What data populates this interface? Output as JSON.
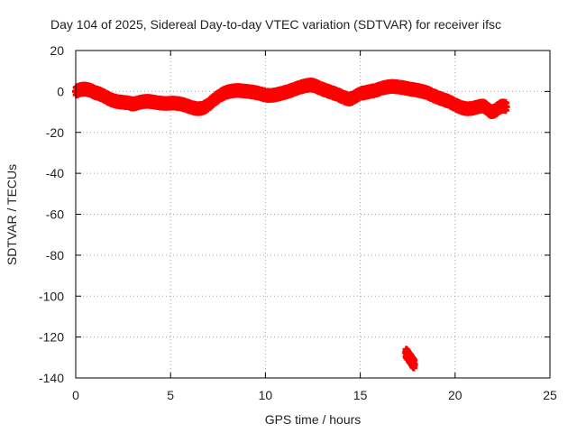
{
  "chart_data": {
    "type": "scatter",
    "title": "Day 104 of 2025, Sidereal Day-to-day VTEC variation (SDTVAR) for receiver ifsc",
    "xlabel": "GPS time / hours",
    "ylabel": "SDTVAR / TECUs",
    "xlim": [
      0,
      25
    ],
    "ylim": [
      -140,
      20
    ],
    "xticks": [
      0,
      5,
      10,
      15,
      20,
      25
    ],
    "yticks": [
      -140,
      -120,
      -100,
      -80,
      -60,
      -40,
      -20,
      0,
      20
    ],
    "grid": true,
    "marker": "+",
    "series": [
      {
        "name": "SDTVAR",
        "color": "#ff0000",
        "points": [
          [
            0.0,
            0.0
          ],
          [
            0.2,
            0.8
          ],
          [
            0.4,
            1.2
          ],
          [
            0.6,
            1.0
          ],
          [
            0.8,
            0.5
          ],
          [
            1.0,
            -0.5
          ],
          [
            1.2,
            -1.0
          ],
          [
            1.4,
            -1.8
          ],
          [
            1.6,
            -2.8
          ],
          [
            1.8,
            -3.8
          ],
          [
            2.0,
            -4.5
          ],
          [
            2.2,
            -5.0
          ],
          [
            2.5,
            -5.3
          ],
          [
            2.8,
            -5.6
          ],
          [
            3.0,
            -6.2
          ],
          [
            3.2,
            -5.8
          ],
          [
            3.5,
            -5.0
          ],
          [
            3.8,
            -4.8
          ],
          [
            4.0,
            -5.0
          ],
          [
            4.3,
            -5.5
          ],
          [
            4.6,
            -5.8
          ],
          [
            4.9,
            -5.8
          ],
          [
            5.2,
            -5.7
          ],
          [
            5.5,
            -6.0
          ],
          [
            5.8,
            -6.8
          ],
          [
            6.1,
            -7.8
          ],
          [
            6.4,
            -8.5
          ],
          [
            6.7,
            -8.2
          ],
          [
            7.0,
            -6.5
          ],
          [
            7.3,
            -4.0
          ],
          [
            7.6,
            -2.0
          ],
          [
            7.9,
            -0.5
          ],
          [
            8.2,
            0.2
          ],
          [
            8.5,
            0.5
          ],
          [
            8.8,
            0.3
          ],
          [
            9.1,
            0.0
          ],
          [
            9.4,
            -0.4
          ],
          [
            9.7,
            -1.0
          ],
          [
            10.0,
            -1.8
          ],
          [
            10.3,
            -2.0
          ],
          [
            10.6,
            -1.5
          ],
          [
            10.9,
            -0.8
          ],
          [
            11.2,
            0.0
          ],
          [
            11.5,
            1.0
          ],
          [
            11.8,
            2.0
          ],
          [
            12.1,
            2.8
          ],
          [
            12.4,
            3.2
          ],
          [
            12.6,
            2.8
          ],
          [
            12.9,
            1.5
          ],
          [
            13.2,
            0.5
          ],
          [
            13.5,
            -0.5
          ],
          [
            13.8,
            -1.5
          ],
          [
            14.1,
            -2.8
          ],
          [
            14.4,
            -3.8
          ],
          [
            14.6,
            -3.2
          ],
          [
            15.0,
            -1.0
          ],
          [
            15.3,
            -0.5
          ],
          [
            15.5,
            0.0
          ],
          [
            15.8,
            0.5
          ],
          [
            16.1,
            1.5
          ],
          [
            16.4,
            2.2
          ],
          [
            16.7,
            2.5
          ],
          [
            17.0,
            2.2
          ],
          [
            17.3,
            1.8
          ],
          [
            17.6,
            1.2
          ],
          [
            17.9,
            0.8
          ],
          [
            18.2,
            0.2
          ],
          [
            18.5,
            -0.5
          ],
          [
            18.8,
            -1.8
          ],
          [
            19.1,
            -3.0
          ],
          [
            19.4,
            -4.0
          ],
          [
            19.7,
            -5.0
          ],
          [
            20.0,
            -6.5
          ],
          [
            20.3,
            -7.8
          ],
          [
            20.6,
            -8.5
          ],
          [
            20.9,
            -8.3
          ],
          [
            21.2,
            -7.5
          ],
          [
            21.5,
            -7.0
          ],
          [
            21.7,
            -8.5
          ],
          [
            21.9,
            -10.0
          ],
          [
            22.1,
            -9.5
          ],
          [
            22.3,
            -8.0
          ],
          [
            22.5,
            -7.0
          ],
          [
            22.7,
            -7.5
          ],
          [
            17.4,
            -127.5
          ],
          [
            17.55,
            -129.5
          ],
          [
            17.7,
            -131.5
          ],
          [
            17.85,
            -133.5
          ]
        ]
      }
    ]
  }
}
